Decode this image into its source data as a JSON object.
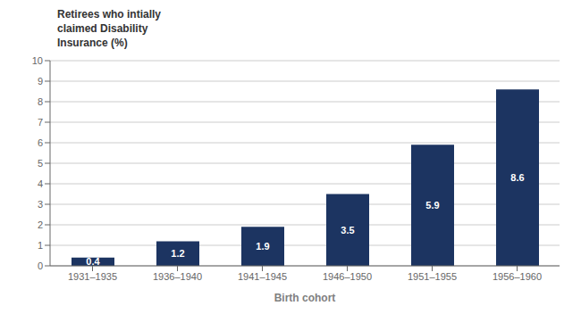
{
  "chart_data": {
    "type": "bar",
    "ylabel": "Retirees who intially\nclaimed Disability\nInsurance (%)",
    "xlabel": "Birth cohort",
    "categories": [
      "1931–1935",
      "1936–1940",
      "1941–1945",
      "1946–1950",
      "1951–1955",
      "1956–1960"
    ],
    "values": [
      0.4,
      1.2,
      1.9,
      3.5,
      5.9,
      8.6
    ],
    "color": "#1c3461",
    "ylim": [
      0,
      10
    ],
    "yticks": [
      0,
      1,
      2,
      3,
      4,
      5,
      6,
      7,
      8,
      9,
      10
    ],
    "grid": true,
    "data_labels": true
  }
}
